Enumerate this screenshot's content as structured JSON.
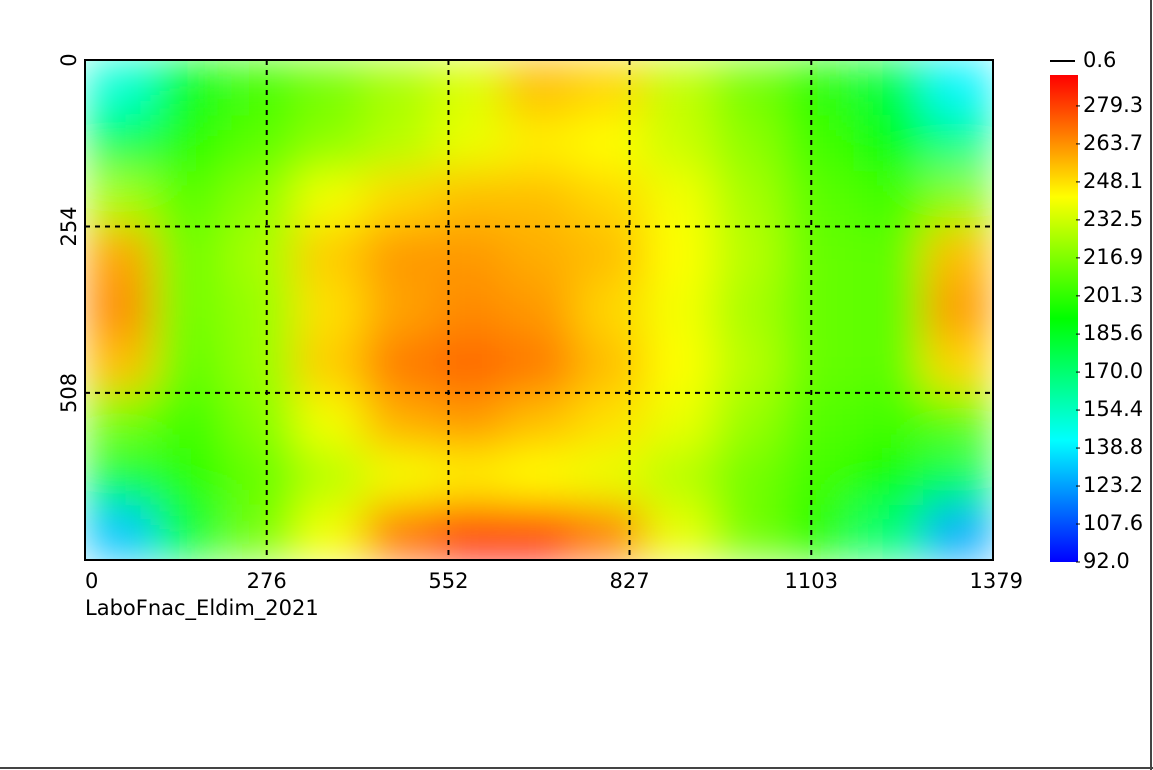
{
  "chart_data": {
    "type": "heatmap",
    "caption": "LaboFnac_Eldim_2021",
    "xlim": [
      0,
      1379
    ],
    "xticks": [
      0,
      276,
      552,
      827,
      1103,
      1379
    ],
    "ylim": [
      763,
      0
    ],
    "yticks": [
      0,
      254,
      508
    ],
    "grid": true,
    "clim": [
      92,
      292
    ],
    "cticks": [
      {
        "value": 92,
        "label": "92.0"
      },
      107.6,
      123.2,
      138.8,
      154.4,
      {
        "value": 170,
        "label": "170.0"
      },
      185.6,
      201.3,
      216.9,
      232.5,
      248.1,
      263.7,
      279.3
    ],
    "contour_level": 0.6,
    "colormap": [
      "#0000ff",
      "#00ffff",
      "#00ff00",
      "#ffff00",
      "#ff0000"
    ],
    "z": [
      [
        150,
        185,
        205,
        215,
        225,
        235,
        255,
        250,
        230,
        215,
        200,
        180,
        140
      ],
      [
        175,
        200,
        210,
        220,
        228,
        238,
        245,
        242,
        232,
        220,
        205,
        190,
        165
      ],
      [
        225,
        210,
        220,
        240,
        250,
        255,
        255,
        250,
        240,
        225,
        210,
        205,
        220
      ],
      [
        260,
        215,
        225,
        252,
        262,
        262,
        258,
        255,
        242,
        228,
        212,
        210,
        255
      ],
      [
        265,
        215,
        222,
        248,
        260,
        265,
        262,
        250,
        240,
        225,
        212,
        210,
        262
      ],
      [
        255,
        212,
        222,
        252,
        268,
        272,
        268,
        255,
        242,
        228,
        212,
        210,
        250
      ],
      [
        215,
        205,
        218,
        240,
        258,
        262,
        255,
        248,
        238,
        222,
        208,
        205,
        210
      ],
      [
        180,
        200,
        212,
        228,
        240,
        245,
        242,
        238,
        228,
        215,
        205,
        195,
        175
      ],
      [
        130,
        180,
        215,
        240,
        270,
        285,
        285,
        268,
        238,
        215,
        200,
        170,
        125
      ]
    ]
  }
}
